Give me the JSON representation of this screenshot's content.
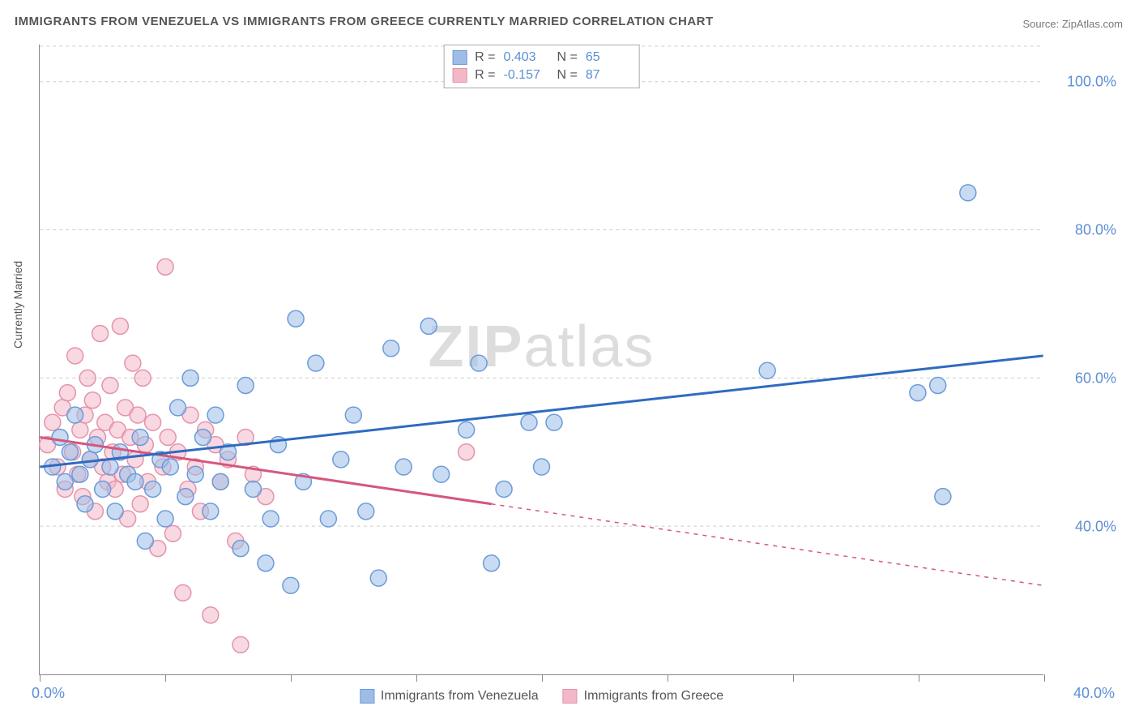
{
  "title": "IMMIGRANTS FROM VENEZUELA VS IMMIGRANTS FROM GREECE CURRENTLY MARRIED CORRELATION CHART",
  "source": "Source: ZipAtlas.com",
  "ylabel": "Currently Married",
  "watermark_bold": "ZIP",
  "watermark_rest": "atlas",
  "xlim": [
    0,
    40
  ],
  "ylim": [
    20,
    105
  ],
  "y_ticks": [
    40,
    60,
    80,
    100
  ],
  "y_tick_labels": [
    "40.0%",
    "60.0%",
    "80.0%",
    "100.0%"
  ],
  "x_ticks": [
    0,
    5,
    10,
    15,
    20,
    25,
    30,
    35,
    40
  ],
  "x_left_label": "0.0%",
  "x_right_label": "40.0%",
  "series": {
    "venezuela": {
      "label": "Immigrants from Venezuela",
      "color": "#9dbde7",
      "stroke": "#6b9bd8",
      "line_color": "#2e6bc0",
      "r": 0.403,
      "n": 65,
      "trend": {
        "x1": 0,
        "y1": 48,
        "x2": 40,
        "y2": 63
      },
      "trend_solid_xmax": 40,
      "points": [
        [
          0.5,
          48
        ],
        [
          0.8,
          52
        ],
        [
          1.0,
          46
        ],
        [
          1.2,
          50
        ],
        [
          1.4,
          55
        ],
        [
          1.6,
          47
        ],
        [
          1.8,
          43
        ],
        [
          2.0,
          49
        ],
        [
          2.2,
          51
        ],
        [
          2.5,
          45
        ],
        [
          2.8,
          48
        ],
        [
          3.0,
          42
        ],
        [
          3.2,
          50
        ],
        [
          3.5,
          47
        ],
        [
          3.8,
          46
        ],
        [
          4.0,
          52
        ],
        [
          4.2,
          38
        ],
        [
          4.5,
          45
        ],
        [
          4.8,
          49
        ],
        [
          5.0,
          41
        ],
        [
          5.2,
          48
        ],
        [
          5.5,
          56
        ],
        [
          5.8,
          44
        ],
        [
          6.0,
          60
        ],
        [
          6.2,
          47
        ],
        [
          6.5,
          52
        ],
        [
          6.8,
          42
        ],
        [
          7.0,
          55
        ],
        [
          7.2,
          46
        ],
        [
          7.5,
          50
        ],
        [
          8.0,
          37
        ],
        [
          8.2,
          59
        ],
        [
          8.5,
          45
        ],
        [
          9.0,
          35
        ],
        [
          9.2,
          41
        ],
        [
          9.5,
          51
        ],
        [
          10.0,
          32
        ],
        [
          10.2,
          68
        ],
        [
          10.5,
          46
        ],
        [
          11.0,
          62
        ],
        [
          11.5,
          41
        ],
        [
          12.0,
          49
        ],
        [
          12.5,
          55
        ],
        [
          13.0,
          42
        ],
        [
          13.5,
          33
        ],
        [
          14.0,
          64
        ],
        [
          14.5,
          48
        ],
        [
          15.5,
          67
        ],
        [
          16.0,
          47
        ],
        [
          17.0,
          53
        ],
        [
          17.5,
          62
        ],
        [
          18.0,
          35
        ],
        [
          18.5,
          45
        ],
        [
          19.5,
          54
        ],
        [
          20.0,
          48
        ],
        [
          20.5,
          54
        ],
        [
          29.0,
          61
        ],
        [
          35.0,
          58
        ],
        [
          35.8,
          59
        ],
        [
          36.0,
          44
        ],
        [
          37.0,
          85
        ]
      ]
    },
    "greece": {
      "label": "Immigrants from Greece",
      "color": "#f2b8c8",
      "stroke": "#e593ab",
      "line_color": "#d5577e",
      "r": -0.157,
      "n": 87,
      "trend": {
        "x1": 0,
        "y1": 52,
        "x2": 40,
        "y2": 32
      },
      "trend_solid_xmax": 18,
      "points": [
        [
          0.3,
          51
        ],
        [
          0.5,
          54
        ],
        [
          0.7,
          48
        ],
        [
          0.9,
          56
        ],
        [
          1.0,
          45
        ],
        [
          1.1,
          58
        ],
        [
          1.3,
          50
        ],
        [
          1.4,
          63
        ],
        [
          1.5,
          47
        ],
        [
          1.6,
          53
        ],
        [
          1.7,
          44
        ],
        [
          1.8,
          55
        ],
        [
          1.9,
          60
        ],
        [
          2.0,
          49
        ],
        [
          2.1,
          57
        ],
        [
          2.2,
          42
        ],
        [
          2.3,
          52
        ],
        [
          2.4,
          66
        ],
        [
          2.5,
          48
        ],
        [
          2.6,
          54
        ],
        [
          2.7,
          46
        ],
        [
          2.8,
          59
        ],
        [
          2.9,
          50
        ],
        [
          3.0,
          45
        ],
        [
          3.1,
          53
        ],
        [
          3.2,
          67
        ],
        [
          3.3,
          47
        ],
        [
          3.4,
          56
        ],
        [
          3.5,
          41
        ],
        [
          3.6,
          52
        ],
        [
          3.7,
          62
        ],
        [
          3.8,
          49
        ],
        [
          3.9,
          55
        ],
        [
          4.0,
          43
        ],
        [
          4.1,
          60
        ],
        [
          4.2,
          51
        ],
        [
          4.3,
          46
        ],
        [
          4.5,
          54
        ],
        [
          4.7,
          37
        ],
        [
          4.9,
          48
        ],
        [
          5.0,
          75
        ],
        [
          5.1,
          52
        ],
        [
          5.3,
          39
        ],
        [
          5.5,
          50
        ],
        [
          5.7,
          31
        ],
        [
          5.9,
          45
        ],
        [
          6.0,
          55
        ],
        [
          6.2,
          48
        ],
        [
          6.4,
          42
        ],
        [
          6.6,
          53
        ],
        [
          6.8,
          28
        ],
        [
          7.0,
          51
        ],
        [
          7.2,
          46
        ],
        [
          7.5,
          49
        ],
        [
          7.8,
          38
        ],
        [
          8.0,
          24
        ],
        [
          8.2,
          52
        ],
        [
          8.5,
          47
        ],
        [
          9.0,
          44
        ],
        [
          17.0,
          50
        ]
      ]
    }
  },
  "legend_labels": {
    "r_prefix": "R =",
    "n_prefix": "N ="
  },
  "marker_radius": 10,
  "marker_opacity": 0.55,
  "background": "#ffffff",
  "grid_color": "#cccccc",
  "axis_color": "#888888",
  "title_color": "#555555",
  "tick_label_color": "#5b8fd4"
}
